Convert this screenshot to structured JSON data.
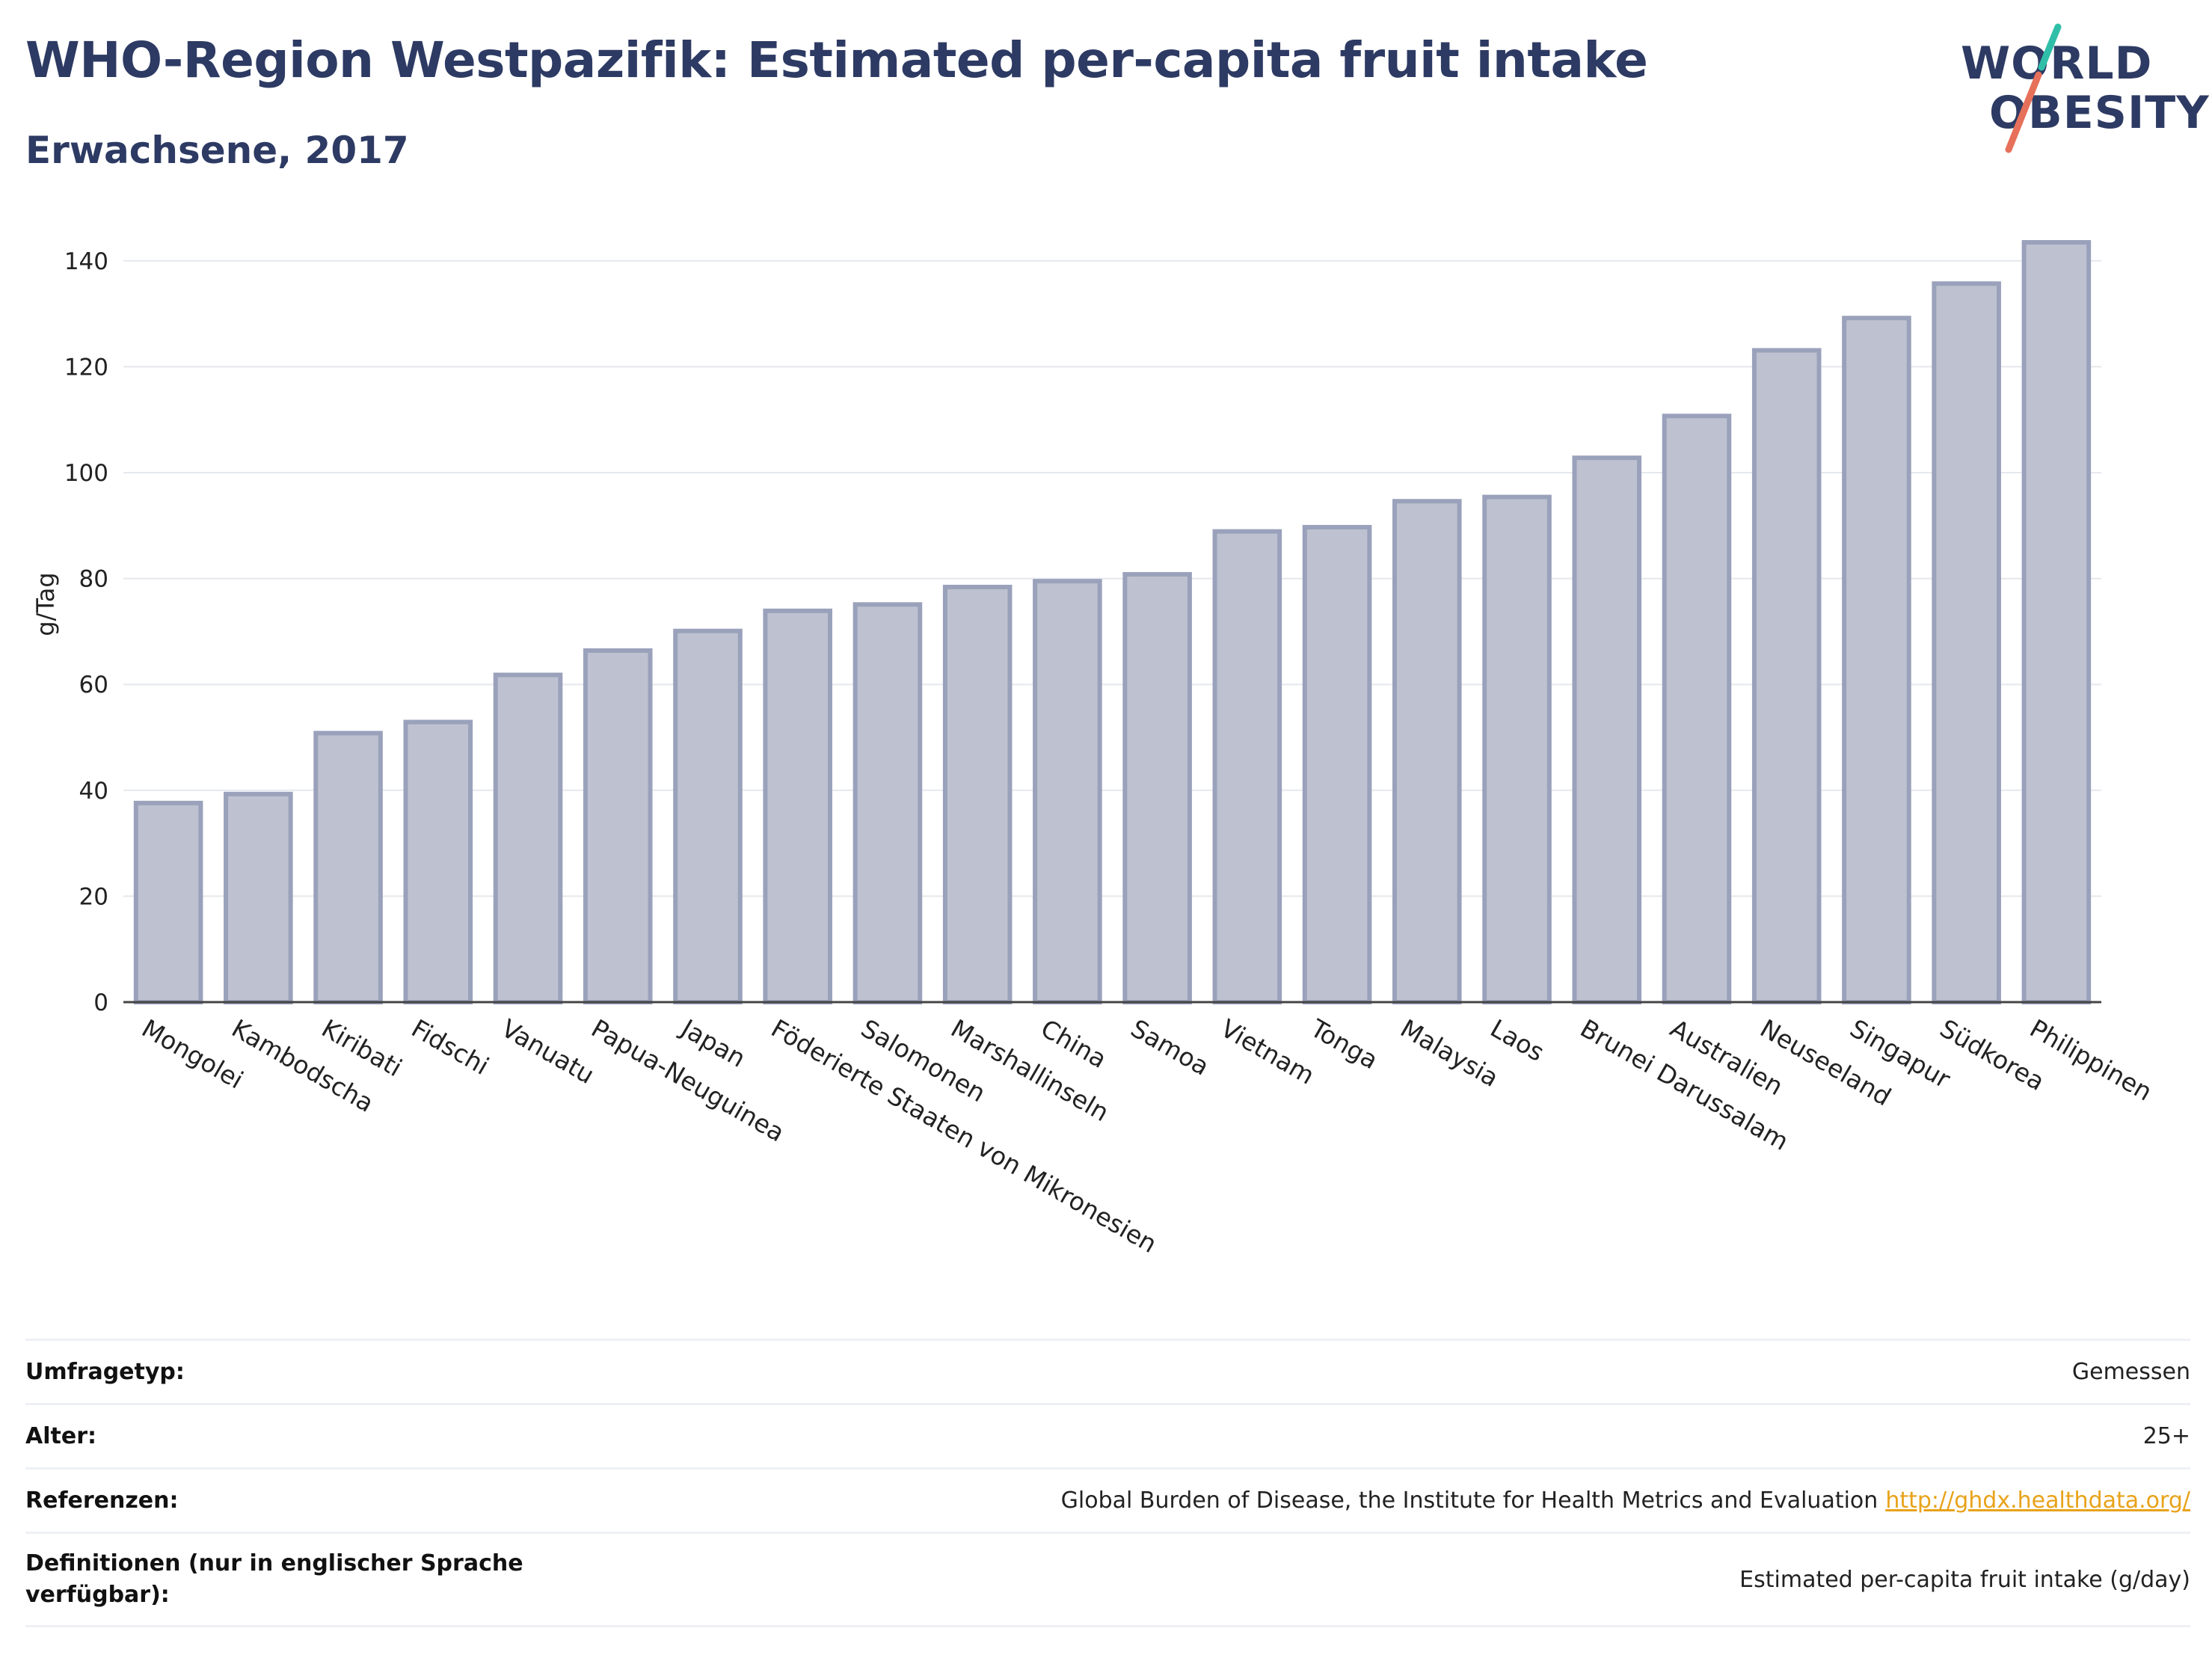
{
  "header": {
    "title": "WHO-Region Westpazifik: Estimated per-capita fruit intake",
    "subtitle": "Erwachsene, 2017"
  },
  "logo": {
    "line1": "WORLD",
    "line2": "OBESITY",
    "stroke_colors": [
      "#2fbfa8",
      "#e7705a"
    ]
  },
  "chart_data": {
    "type": "bar",
    "ylabel": "g/Tag",
    "ylim": [
      0,
      150
    ],
    "yticks": [
      0,
      20,
      40,
      60,
      80,
      100,
      120,
      140
    ],
    "grid": true,
    "bar_fill": "#bec2d0",
    "bar_stroke": "#9aa1bb",
    "categories": [
      "Mongolei",
      "Kambodscha",
      "Kiribati",
      "Fidschi",
      "Vanuatu",
      "Papua-Neuguinea",
      "Japan",
      "Föderierte Staaten von Mikronesien",
      "Salomonen",
      "Marshallinseln",
      "China",
      "Samoa",
      "Vietnam",
      "Tonga",
      "Malaysia",
      "Laos",
      "Brunei Darussalam",
      "Australien",
      "Neuseeland",
      "Singapur",
      "Südkorea",
      "Philippinen"
    ],
    "values": [
      37.6,
      39.3,
      50.8,
      52.9,
      61.8,
      66.4,
      70.1,
      73.9,
      75.1,
      78.4,
      79.5,
      80.8,
      88.9,
      89.7,
      94.6,
      95.4,
      102.8,
      110.7,
      123.1,
      129.2,
      135.7,
      143.5
    ]
  },
  "meta": {
    "rows": [
      {
        "label": "Umfragetyp:",
        "value": "Gemessen",
        "link": ""
      },
      {
        "label": "Alter:",
        "value": "25+",
        "link": ""
      },
      {
        "label": "Referenzen:",
        "value": "Global Burden of Disease, the Institute for Health Metrics and Evaluation",
        "link": "http://ghdx.healthdata.org/"
      },
      {
        "label": "Definitionen (nur in englischer Sprache verfügbar):",
        "value": "Estimated per-capita fruit intake (g/day)",
        "link": ""
      }
    ]
  }
}
